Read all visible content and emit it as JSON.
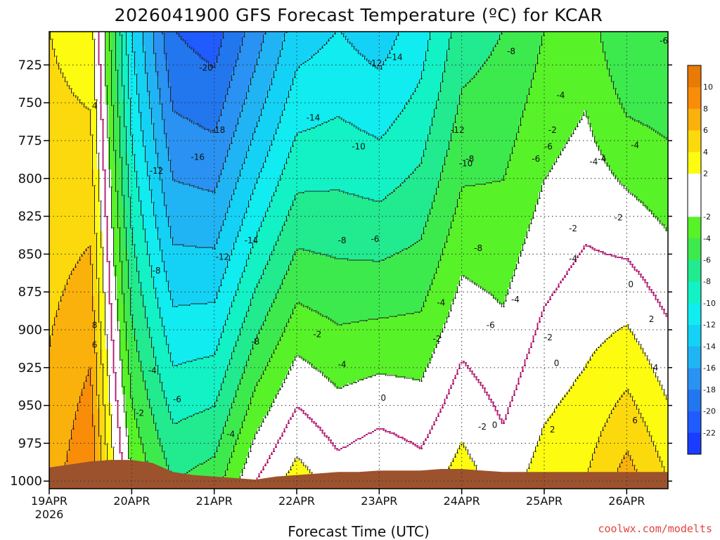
{
  "header": {
    "title": "2026041900 GFS Forecast Temperature (ºC) for KCAR",
    "credit": "coolwx.com/modelts"
  },
  "colors": {
    "ground": "#9c522d",
    "freezing_line": "#b0156e",
    "contour_dashed": "#222222",
    "palette": [
      {
        "min": -24,
        "max": -22,
        "color": "#1a3cff"
      },
      {
        "min": -22,
        "max": -20,
        "color": "#1f5bff"
      },
      {
        "min": -20,
        "max": -18,
        "color": "#2276ee"
      },
      {
        "min": -18,
        "max": -16,
        "color": "#2a92f2"
      },
      {
        "min": -16,
        "max": -14,
        "color": "#21b4f4"
      },
      {
        "min": -14,
        "max": -12,
        "color": "#14d2f6"
      },
      {
        "min": -12,
        "max": -10,
        "color": "#10ecf0"
      },
      {
        "min": -10,
        "max": -8,
        "color": "#12f2c4"
      },
      {
        "min": -8,
        "max": -6,
        "color": "#21ea8f"
      },
      {
        "min": -6,
        "max": -4,
        "color": "#3dea4e"
      },
      {
        "min": -4,
        "max": -2,
        "color": "#57f228"
      },
      {
        "min": -2,
        "max": 2,
        "color": "#ffffff"
      },
      {
        "min": 2,
        "max": 4,
        "color": "#fdfb10"
      },
      {
        "min": 4,
        "max": 6,
        "color": "#fcd90d"
      },
      {
        "min": 6,
        "max": 8,
        "color": "#fbb10b"
      },
      {
        "min": 8,
        "max": 10,
        "color": "#f98c08"
      },
      {
        "min": 10,
        "max": 12,
        "color": "#e97a04"
      }
    ]
  },
  "chart_data": {
    "type": "heatmap",
    "title": "2026041900 GFS Forecast Temperature (ºC) for KCAR",
    "xlabel": "Forecast Time (UTC)",
    "ylabel": "",
    "x_ticks": [
      {
        "label": "19APR",
        "sub": "2026",
        "day": 0
      },
      {
        "label": "20APR",
        "sub": "",
        "day": 1
      },
      {
        "label": "21APR",
        "sub": "",
        "day": 2
      },
      {
        "label": "22APR",
        "sub": "",
        "day": 3
      },
      {
        "label": "23APR",
        "sub": "",
        "day": 4
      },
      {
        "label": "24APR",
        "sub": "",
        "day": 5
      },
      {
        "label": "25APR",
        "sub": "",
        "day": 6
      },
      {
        "label": "26APR",
        "sub": "",
        "day": 7
      }
    ],
    "xlim_days": [
      0,
      7.5
    ],
    "y_ticks": [
      725,
      750,
      775,
      800,
      825,
      850,
      875,
      900,
      925,
      950,
      975,
      1000
    ],
    "ylim_hpa": [
      703,
      1005
    ],
    "grid": true,
    "legend_placement": "right",
    "colorbar_ticks": [
      10,
      8,
      6,
      4,
      2,
      -2,
      -4,
      -6,
      -8,
      -10,
      -12,
      -14,
      -16,
      -18,
      -20,
      -22
    ],
    "ground_pressure_hpa": [
      [
        0,
        991
      ],
      [
        0.25,
        989
      ],
      [
        0.5,
        987
      ],
      [
        0.75,
        986
      ],
      [
        1.0,
        986
      ],
      [
        1.25,
        988
      ],
      [
        1.5,
        994
      ],
      [
        1.75,
        996
      ],
      [
        2.0,
        997
      ],
      [
        2.25,
        998
      ],
      [
        2.5,
        999
      ],
      [
        2.75,
        997
      ],
      [
        3.0,
        996
      ],
      [
        3.25,
        995
      ],
      [
        3.5,
        994
      ],
      [
        3.75,
        994
      ],
      [
        4.0,
        993
      ],
      [
        4.25,
        993
      ],
      [
        4.5,
        993
      ],
      [
        4.75,
        992
      ],
      [
        5.0,
        992
      ],
      [
        5.25,
        993
      ],
      [
        5.5,
        994
      ],
      [
        5.75,
        994
      ],
      [
        6.0,
        994
      ],
      [
        6.25,
        994
      ],
      [
        6.5,
        994
      ],
      [
        6.75,
        994
      ],
      [
        7.0,
        994
      ],
      [
        7.25,
        994
      ],
      [
        7.5,
        994
      ]
    ],
    "temperature_at_1000hpa": [
      [
        0,
        7
      ],
      [
        0.5,
        10
      ],
      [
        0.75,
        3
      ],
      [
        1.0,
        -2
      ],
      [
        1.5,
        -6
      ],
      [
        2.0,
        -5
      ],
      [
        2.5,
        0
      ],
      [
        3.0,
        3
      ],
      [
        3.5,
        1
      ],
      [
        4.0,
        2
      ],
      [
        4.5,
        1
      ],
      [
        5.0,
        3
      ],
      [
        5.5,
        1
      ],
      [
        6.0,
        3
      ],
      [
        6.5,
        4
      ],
      [
        7.0,
        7
      ],
      [
        7.5,
        4
      ]
    ],
    "temperature_at_700hpa": [
      [
        0,
        4
      ],
      [
        0.5,
        3
      ],
      [
        1.0,
        -12
      ],
      [
        1.5,
        -20
      ],
      [
        2.0,
        -21
      ],
      [
        2.5,
        -17
      ],
      [
        3.0,
        -13
      ],
      [
        3.5,
        -12
      ],
      [
        4.0,
        -13
      ],
      [
        4.5,
        -11
      ],
      [
        5.0,
        -7
      ],
      [
        5.5,
        -6
      ],
      [
        6.0,
        -4
      ],
      [
        6.5,
        -3
      ],
      [
        7.0,
        -6
      ],
      [
        7.5,
        -6
      ]
    ],
    "contour_labels": [
      {
        "text": "-20",
        "day": 1.9,
        "p": 727
      },
      {
        "text": "-18",
        "day": 2.05,
        "p": 768
      },
      {
        "text": "-16",
        "day": 1.8,
        "p": 786
      },
      {
        "text": "-14",
        "day": 2.45,
        "p": 841
      },
      {
        "text": "-14",
        "day": 3.2,
        "p": 760
      },
      {
        "text": "-14",
        "day": 4.2,
        "p": 720
      },
      {
        "text": "-12",
        "day": 1.3,
        "p": 795
      },
      {
        "text": "-12",
        "day": 2.1,
        "p": 852
      },
      {
        "text": "-12",
        "day": 3.95,
        "p": 724
      },
      {
        "text": "-12",
        "day": 4.95,
        "p": 768
      },
      {
        "text": "-10",
        "day": 3.75,
        "p": 779
      },
      {
        "text": "-10",
        "day": 5.05,
        "p": 790
      },
      {
        "text": "-8",
        "day": 1.3,
        "p": 861
      },
      {
        "text": "-8",
        "day": 2.5,
        "p": 908
      },
      {
        "text": "-8",
        "day": 3.55,
        "p": 841
      },
      {
        "text": "-8",
        "day": 5.1,
        "p": 787
      },
      {
        "text": "-8",
        "day": 5.2,
        "p": 846
      },
      {
        "text": "-8",
        "day": 5.6,
        "p": 716
      },
      {
        "text": "-6",
        "day": 1.55,
        "p": 946
      },
      {
        "text": "-6",
        "day": 3.95,
        "p": 840
      },
      {
        "text": "-6",
        "day": 5.35,
        "p": 897
      },
      {
        "text": "-6",
        "day": 5.9,
        "p": 787
      },
      {
        "text": "-6",
        "day": 6.05,
        "p": 779
      },
      {
        "text": "-6",
        "day": 7.45,
        "p": 709
      },
      {
        "text": "-4",
        "day": 1.25,
        "p": 927
      },
      {
        "text": "-4",
        "day": 2.2,
        "p": 969
      },
      {
        "text": "-4",
        "day": 3.55,
        "p": 923
      },
      {
        "text": "-4",
        "day": 4.75,
        "p": 882
      },
      {
        "text": "-4",
        "day": 5.65,
        "p": 880
      },
      {
        "text": "-4",
        "day": 6.2,
        "p": 745
      },
      {
        "text": "-4",
        "day": 6.6,
        "p": 789
      },
      {
        "text": "-4",
        "day": 6.7,
        "p": 787
      },
      {
        "text": "-4",
        "day": 7.1,
        "p": 778
      },
      {
        "text": "-4",
        "day": 6.35,
        "p": 853
      },
      {
        "text": "-2",
        "day": 1.1,
        "p": 955
      },
      {
        "text": "-2",
        "day": 3.25,
        "p": 903
      },
      {
        "text": "-2",
        "day": 4.7,
        "p": 906
      },
      {
        "text": "-2",
        "day": 5.25,
        "p": 964
      },
      {
        "text": "-2",
        "day": 6.05,
        "p": 905
      },
      {
        "text": "-2",
        "day": 6.1,
        "p": 768
      },
      {
        "text": "-2",
        "day": 6.35,
        "p": 833
      },
      {
        "text": "-2",
        "day": 6.9,
        "p": 826
      },
      {
        "text": "0",
        "day": 4.05,
        "p": 945
      },
      {
        "text": "0",
        "day": 5.4,
        "p": 963
      },
      {
        "text": "0",
        "day": 6.15,
        "p": 922
      },
      {
        "text": "0",
        "day": 7.05,
        "p": 870
      },
      {
        "text": "2",
        "day": 6.1,
        "p": 966
      },
      {
        "text": "2",
        "day": 7.3,
        "p": 893
      },
      {
        "text": "4",
        "day": 0.55,
        "p": 752
      },
      {
        "text": "4",
        "day": 7.35,
        "p": 925
      },
      {
        "text": "6",
        "day": 0.55,
        "p": 910
      },
      {
        "text": "6",
        "day": 7.1,
        "p": 960
      },
      {
        "text": "8",
        "day": 0.55,
        "p": 897
      }
    ]
  }
}
